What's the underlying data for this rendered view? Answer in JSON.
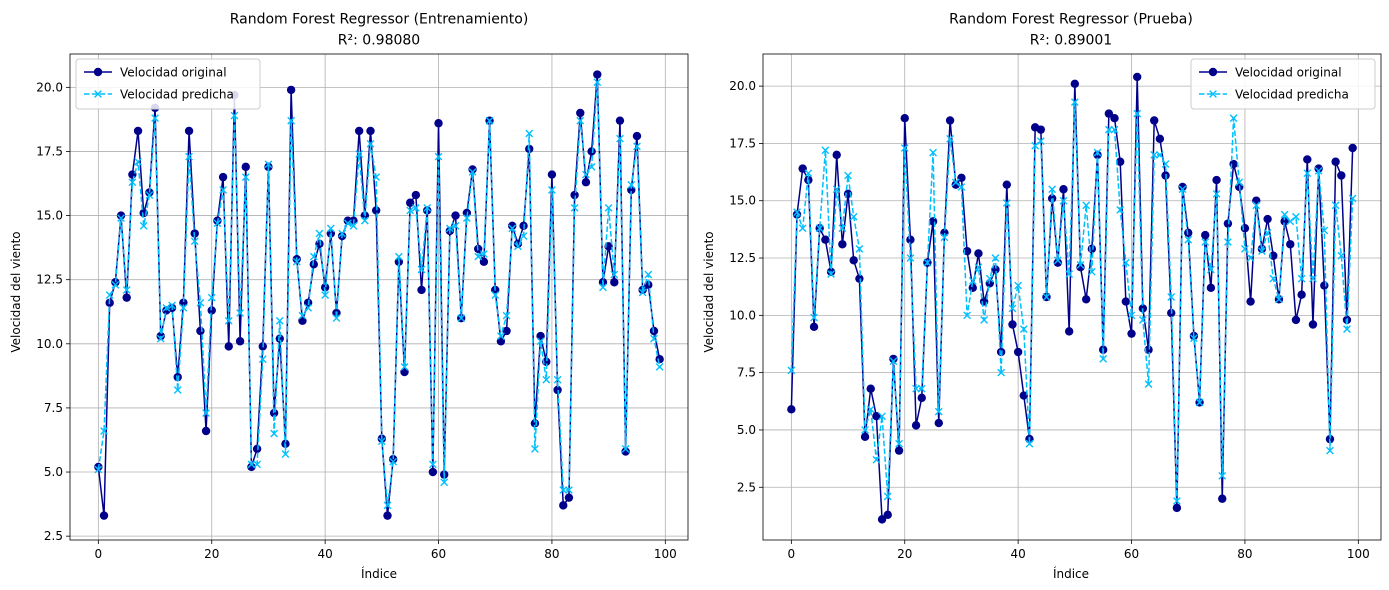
{
  "colors": {
    "original": "#00008b",
    "predicted": "#00bfff",
    "grid": "#b0b0b0",
    "axes": "#000000"
  },
  "chart_data": [
    {
      "type": "line",
      "title": "Random Forest Regressor (Entrenamiento)",
      "subtitle": "R²: 0.98080",
      "xlabel": "Índice",
      "ylabel": "Velocidad del viento",
      "xlim": [
        -5,
        104
      ],
      "ylim": [
        2.35,
        21.3
      ],
      "xticks": [
        0,
        20,
        40,
        60,
        80,
        100
      ],
      "yticks": [
        2.5,
        5.0,
        7.5,
        10.0,
        12.5,
        15.0,
        17.5,
        20.0
      ],
      "grid": true,
      "legend": "top-left",
      "series": [
        {
          "name": "Velocidad original",
          "style": "solid-circle",
          "values": [
            5.2,
            3.3,
            11.6,
            12.4,
            15.0,
            11.8,
            16.6,
            18.3,
            15.1,
            15.9,
            19.2,
            10.3,
            11.3,
            11.4,
            8.7,
            11.6,
            18.3,
            14.3,
            10.5,
            6.6,
            11.3,
            14.8,
            16.5,
            9.9,
            19.7,
            10.1,
            16.9,
            5.2,
            5.9,
            9.9,
            16.9,
            7.3,
            10.2,
            6.1,
            19.9,
            13.3,
            10.9,
            11.6,
            13.1,
            13.9,
            12.2,
            14.3,
            11.2,
            14.2,
            14.8,
            14.8,
            18.3,
            15.0,
            18.3,
            15.2,
            6.3,
            3.3,
            5.5,
            13.2,
            8.9,
            15.5,
            15.8,
            12.1,
            15.2,
            5.0,
            18.6,
            4.9,
            14.4,
            15.0,
            11.0,
            15.1,
            16.8,
            13.7,
            13.2,
            18.7,
            12.1,
            10.1,
            10.5,
            14.6,
            13.9,
            14.6,
            17.6,
            6.9,
            10.3,
            9.3,
            16.6,
            8.2,
            3.7,
            4.0,
            15.8,
            19.0,
            16.3,
            17.5,
            20.5,
            12.4,
            13.8,
            12.4,
            18.7,
            5.8,
            16.0,
            18.1,
            12.1,
            12.3,
            10.5,
            9.4
          ]
        },
        {
          "name": "Velocidad predicha",
          "style": "dashed-x",
          "values": [
            5.1,
            6.6,
            11.9,
            12.3,
            14.9,
            12.1,
            16.3,
            17.1,
            14.6,
            15.8,
            18.8,
            10.2,
            11.4,
            11.5,
            8.2,
            11.4,
            17.3,
            14.0,
            11.6,
            7.3,
            11.8,
            14.7,
            16.0,
            10.9,
            18.9,
            11.2,
            16.5,
            5.3,
            5.3,
            9.4,
            17.0,
            6.5,
            10.9,
            5.7,
            18.7,
            13.2,
            11.1,
            11.4,
            13.4,
            14.3,
            11.9,
            14.5,
            11.0,
            14.3,
            14.7,
            14.6,
            17.4,
            14.8,
            17.8,
            16.5,
            6.2,
            3.7,
            5.4,
            13.4,
            9.1,
            15.2,
            15.3,
            12.9,
            15.3,
            5.3,
            17.3,
            4.6,
            14.5,
            14.6,
            11.0,
            14.9,
            16.7,
            13.4,
            13.5,
            18.7,
            11.9,
            10.3,
            11.1,
            14.5,
            13.8,
            14.2,
            18.2,
            5.9,
            10.1,
            8.6,
            16.0,
            8.6,
            4.3,
            4.3,
            15.3,
            18.7,
            16.6,
            16.9,
            20.2,
            12.2,
            15.3,
            12.7,
            18.0,
            5.9,
            16.2,
            17.7,
            12.0,
            12.7,
            10.2,
            9.1
          ]
        }
      ]
    },
    {
      "type": "line",
      "title": "Random Forest Regressor (Prueba)",
      "subtitle": "R²: 0.89001",
      "xlabel": "Índice",
      "ylabel": "Velocidad del viento",
      "xlim": [
        -5,
        104
      ],
      "ylim": [
        0.2,
        21.4
      ],
      "xticks": [
        0,
        20,
        40,
        60,
        80,
        100
      ],
      "yticks": [
        2.5,
        5.0,
        7.5,
        10.0,
        12.5,
        15.0,
        17.5,
        20.0
      ],
      "grid": true,
      "legend": "top-right",
      "series": [
        {
          "name": "Velocidad original",
          "style": "solid-circle",
          "values": [
            5.9,
            14.4,
            16.4,
            15.9,
            9.5,
            13.8,
            13.3,
            11.9,
            17.0,
            13.1,
            15.3,
            12.4,
            11.6,
            4.7,
            6.8,
            5.6,
            1.1,
            1.3,
            8.1,
            4.1,
            18.6,
            13.3,
            5.2,
            6.4,
            12.3,
            14.1,
            5.3,
            13.6,
            18.5,
            15.7,
            16.0,
            12.8,
            11.2,
            12.7,
            10.6,
            11.4,
            12.0,
            8.4,
            15.7,
            9.6,
            8.4,
            6.5,
            4.6,
            18.2,
            18.1,
            10.8,
            15.1,
            12.3,
            15.5,
            9.3,
            20.1,
            12.1,
            10.7,
            12.9,
            17.0,
            8.5,
            18.8,
            18.6,
            16.7,
            10.6,
            9.2,
            20.4,
            10.3,
            8.5,
            18.5,
            17.7,
            16.1,
            10.1,
            1.6,
            15.6,
            13.6,
            9.1,
            6.2,
            13.5,
            11.2,
            15.9,
            2.0,
            14.0,
            16.6,
            15.6,
            13.8,
            10.6,
            15.0,
            12.9,
            14.2,
            12.6,
            10.7,
            14.1,
            13.1,
            9.8,
            10.9,
            16.8,
            9.6,
            16.4,
            11.3,
            4.6,
            16.7,
            16.1,
            9.8,
            17.3
          ]
        },
        {
          "name": "Velocidad predicha",
          "style": "dashed-x",
          "values": [
            7.6,
            14.5,
            13.8,
            16.2,
            9.9,
            13.8,
            17.2,
            11.8,
            15.5,
            13.8,
            16.1,
            14.3,
            12.9,
            5.0,
            5.9,
            3.7,
            5.6,
            2.1,
            8.0,
            4.4,
            17.3,
            12.5,
            6.8,
            6.8,
            12.3,
            17.1,
            5.8,
            13.4,
            17.7,
            15.8,
            15.6,
            10.0,
            11.5,
            12.1,
            9.8,
            11.6,
            12.5,
            7.5,
            14.9,
            10.3,
            11.3,
            9.4,
            4.4,
            17.4,
            17.6,
            10.8,
            15.5,
            12.4,
            15.0,
            11.8,
            19.3,
            12.2,
            14.8,
            11.9,
            17.1,
            8.1,
            18.1,
            18.1,
            14.6,
            12.3,
            10.0,
            18.8,
            9.8,
            7.0,
            17.0,
            17.0,
            16.6,
            10.8,
            1.9,
            15.5,
            13.3,
            9.0,
            6.2,
            13.2,
            12.0,
            15.3,
            3.0,
            13.2,
            18.6,
            15.8,
            12.9,
            12.5,
            14.8,
            12.8,
            13.6,
            11.6,
            10.7,
            14.4,
            14.1,
            14.3,
            11.6,
            16.2,
            11.6,
            16.3,
            13.7,
            4.1,
            14.8,
            12.6,
            9.4,
            15.1
          ]
        }
      ]
    }
  ]
}
